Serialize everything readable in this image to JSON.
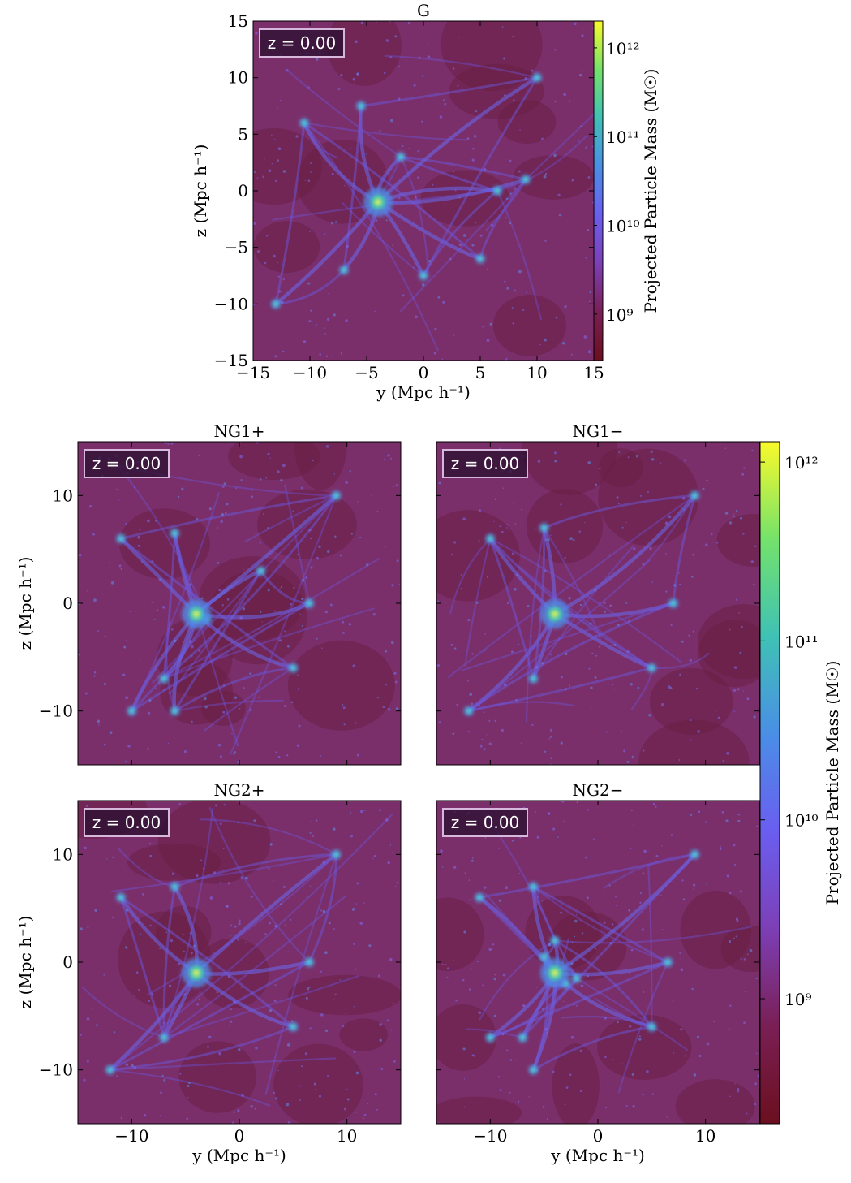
{
  "chart_data": [
    {
      "type": "heatmap",
      "title": "G",
      "redshift_label": "z = 0.00",
      "xlabel": "y  (Mpc h⁻¹)",
      "ylabel": "z  (Mpc h⁻¹)",
      "xlim": [
        -15,
        15
      ],
      "ylim": [
        -15,
        15
      ],
      "xticks": [
        -15,
        -10,
        -5,
        0,
        5,
        10,
        15
      ],
      "yticks": [
        -15,
        -10,
        -5,
        0,
        5,
        10,
        15
      ],
      "xtick_labels": [
        "−15",
        "−10",
        "−5",
        "0",
        "5",
        "10",
        "15"
      ],
      "ytick_labels": [
        "−15",
        "−10",
        "−5",
        "0",
        "5",
        "10",
        "15"
      ],
      "halo_center": [
        -4,
        -1
      ],
      "nodes": [
        [
          -10.5,
          6
        ],
        [
          -5.5,
          7.5
        ],
        [
          6.5,
          0
        ],
        [
          5,
          -6
        ],
        [
          -7,
          -7
        ],
        [
          0,
          -7.5
        ],
        [
          9,
          1
        ],
        [
          -13,
          -10
        ],
        [
          10,
          10
        ],
        [
          -2,
          3
        ]
      ],
      "colorbar": {
        "label": "Projected Particle Mass  (M☉)",
        "scale": "log",
        "range": [
          300000000.0,
          2000000000000.0
        ],
        "ticks": [
          1000000000.0,
          10000000000.0,
          100000000000.0,
          1000000000000.0
        ],
        "tick_labels": [
          "10⁹",
          "10¹⁰",
          "10¹¹",
          "10¹²"
        ]
      }
    },
    {
      "type": "heatmap",
      "title": "NG1+",
      "redshift_label": "z = 0.00",
      "xlabel": "",
      "ylabel": "z  (Mpc h⁻¹)",
      "xlim": [
        -15,
        15
      ],
      "ylim": [
        -15,
        15
      ],
      "xticks": [
        -10,
        0,
        10
      ],
      "yticks": [
        -10,
        0,
        10
      ],
      "xtick_labels": [],
      "ytick_labels": [
        "−10",
        "0",
        "10"
      ],
      "halo_center": [
        -4,
        -1
      ],
      "nodes": [
        [
          -11,
          6
        ],
        [
          -6,
          6.5
        ],
        [
          6.5,
          0
        ],
        [
          5,
          -6
        ],
        [
          -7,
          -7
        ],
        [
          -10,
          -10
        ],
        [
          -6,
          -10
        ],
        [
          9,
          10
        ],
        [
          -3,
          -1.5
        ],
        [
          2,
          3
        ]
      ]
    },
    {
      "type": "heatmap",
      "title": "NG1−",
      "redshift_label": "z = 0.00",
      "xlabel": "",
      "ylabel": "",
      "xlim": [
        -15,
        15
      ],
      "ylim": [
        -15,
        15
      ],
      "xticks": [
        -10,
        0,
        10
      ],
      "yticks": [
        -10,
        0,
        10
      ],
      "xtick_labels": [],
      "ytick_labels": [],
      "halo_center": [
        -4,
        -1
      ],
      "nodes": [
        [
          -10,
          6
        ],
        [
          -5,
          7
        ],
        [
          7,
          0
        ],
        [
          5,
          -6
        ],
        [
          -6,
          -7
        ],
        [
          9,
          10
        ],
        [
          -12,
          -10
        ]
      ]
    },
    {
      "type": "heatmap",
      "title": "NG2+",
      "redshift_label": "z = 0.00",
      "xlabel": "y  (Mpc h⁻¹)",
      "ylabel": "z  (Mpc h⁻¹)",
      "xlim": [
        -15,
        15
      ],
      "ylim": [
        -15,
        15
      ],
      "xticks": [
        -10,
        0,
        10
      ],
      "yticks": [
        -10,
        0,
        10
      ],
      "xtick_labels": [
        "−10",
        "0",
        "10"
      ],
      "ytick_labels": [
        "−10",
        "0",
        "10"
      ],
      "halo_center": [
        -4,
        -1
      ],
      "nodes": [
        [
          -11,
          6
        ],
        [
          -6,
          7
        ],
        [
          6.5,
          0
        ],
        [
          5,
          -6
        ],
        [
          -7,
          -7
        ],
        [
          9,
          10
        ],
        [
          -12,
          -10
        ]
      ]
    },
    {
      "type": "heatmap",
      "title": "NG2−",
      "redshift_label": "z = 0.00",
      "xlabel": "y  (Mpc h⁻¹)",
      "ylabel": "",
      "xlim": [
        -15,
        15
      ],
      "ylim": [
        -15,
        15
      ],
      "xticks": [
        -10,
        0,
        10
      ],
      "yticks": [
        -10,
        0,
        10
      ],
      "xtick_labels": [
        "−10",
        "0",
        "10"
      ],
      "ytick_labels": [],
      "halo_center": [
        -4,
        -1
      ],
      "nodes": [
        [
          -11,
          6
        ],
        [
          -6,
          7
        ],
        [
          -4,
          2
        ],
        [
          -3,
          -2
        ],
        [
          6.5,
          0
        ],
        [
          5,
          -6
        ],
        [
          -7,
          -7
        ],
        [
          -10,
          -7
        ],
        [
          -6,
          -10
        ],
        [
          9,
          10
        ],
        [
          -2,
          -1.5
        ],
        [
          -5,
          0.5
        ]
      ]
    }
  ],
  "colorbar_shared": {
    "label": "Projected Particle Mass  (M☉)",
    "scale": "log",
    "range": [
      200000000.0,
      1300000000000.0
    ],
    "ticks": [
      1000000000.0,
      10000000000.0,
      100000000000.0,
      1000000000000.0
    ],
    "tick_labels": [
      "10⁹",
      "10¹⁰",
      "10¹¹",
      "10¹²"
    ],
    "colors": [
      "#6b0f1f",
      "#7a1f55",
      "#7d3fb6",
      "#6a5ef0",
      "#4a8ee6",
      "#3fc1b5",
      "#74e26b",
      "#fafa2a"
    ]
  }
}
